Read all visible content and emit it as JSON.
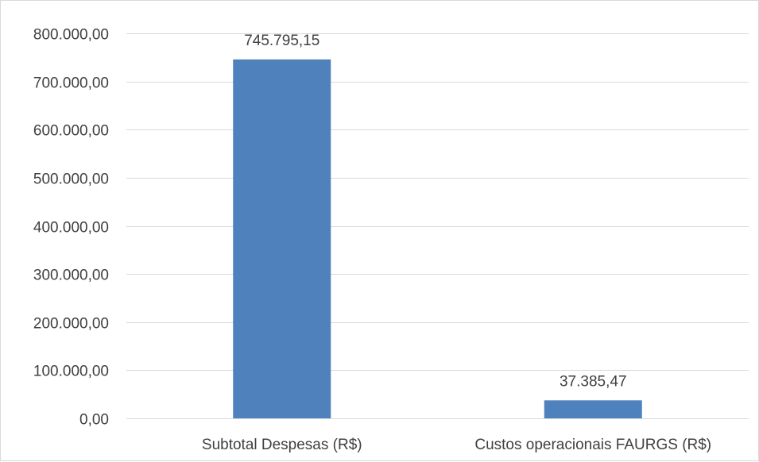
{
  "chart_data": {
    "type": "bar",
    "title": "",
    "xlabel": "",
    "ylabel": "",
    "categories": [
      "Subtotal Despesas (R$)",
      "Custos operacionais FAURGS (R$)"
    ],
    "values": [
      745795.15,
      37385.47
    ],
    "data_labels": [
      "745.795,15",
      "37.385,47"
    ],
    "ylim": [
      0,
      800000
    ],
    "yticks": [
      0,
      100000,
      200000,
      300000,
      400000,
      500000,
      600000,
      700000,
      800000
    ],
    "ytick_labels": [
      "0,00",
      "100.000,00",
      "200.000,00",
      "300.000,00",
      "400.000,00",
      "500.000,00",
      "600.000,00",
      "700.000,00",
      "800.000,00"
    ],
    "grid": true,
    "legend": "none",
    "bar_color": "#4f81bd",
    "grid_color": "#d9d9d9",
    "text_color": "#404040"
  }
}
